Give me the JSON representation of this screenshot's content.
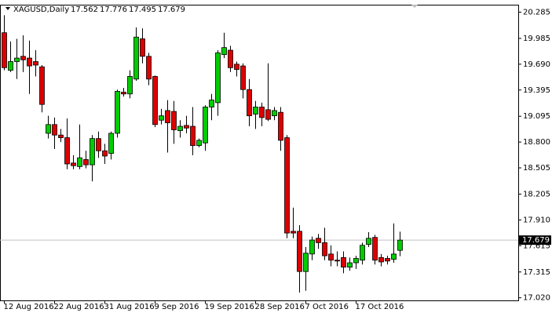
{
  "chart_data": {
    "type": "candlestick",
    "symbol": "XAGUSD,Daily",
    "categories": [
      "12 Aug 2016",
      null,
      null,
      null,
      null,
      null,
      null,
      null,
      "22 Aug 2016",
      null,
      null,
      null,
      null,
      null,
      null,
      null,
      "31 Aug 2016",
      null,
      null,
      null,
      null,
      null,
      null,
      null,
      "9 Sep 2016",
      null,
      null,
      null,
      null,
      null,
      null,
      null,
      "19 Sep 2016",
      null,
      null,
      null,
      null,
      null,
      null,
      null,
      "28 Sep 2016",
      null,
      null,
      null,
      null,
      null,
      null,
      null,
      "7 Oct 2016",
      null,
      null,
      null,
      null,
      null,
      null,
      null,
      "17 Oct 2016",
      null,
      null,
      null,
      null,
      null,
      null,
      null
    ],
    "open": [
      20.05,
      19.62,
      19.72,
      19.78,
      19.76,
      19.72,
      19.66,
      18.9,
      19.0,
      18.88,
      18.85,
      18.56,
      18.52,
      18.6,
      18.54,
      18.84,
      18.7,
      18.67,
      18.9,
      19.37,
      19.35,
      19.52,
      19.98,
      19.78,
      19.55,
      19.05,
      19.16,
      19.15,
      18.93,
      18.99,
      18.98,
      18.76,
      18.79,
      19.2,
      19.25,
      19.8,
      19.85,
      19.69,
      19.67,
      19.4,
      19.12,
      19.2,
      19.17,
      19.1,
      19.14,
      18.85,
      17.78,
      17.78,
      17.32,
      17.52,
      17.7,
      17.65,
      17.52,
      17.45,
      17.48,
      17.37,
      17.42,
      17.45,
      17.63,
      17.71,
      17.48,
      17.47,
      17.46,
      17.562
    ],
    "high": [
      20.25,
      19.95,
      19.98,
      20.02,
      19.96,
      19.85,
      19.68,
      19.1,
      19.08,
      18.95,
      19.07,
      18.65,
      19.0,
      18.7,
      18.88,
      18.92,
      18.78,
      18.92,
      19.4,
      19.42,
      19.62,
      20.11,
      20.1,
      19.82,
      19.56,
      19.18,
      19.28,
      19.27,
      19.05,
      19.1,
      19.2,
      18.84,
      19.22,
      19.35,
      19.85,
      20.05,
      19.9,
      19.72,
      19.7,
      19.52,
      19.27,
      19.25,
      19.7,
      19.2,
      19.2,
      18.88,
      18.05,
      17.85,
      17.6,
      17.72,
      17.75,
      17.82,
      17.62,
      17.55,
      17.55,
      17.48,
      17.5,
      17.65,
      17.77,
      17.74,
      17.52,
      17.5,
      17.87,
      17.776
    ],
    "low": [
      19.62,
      19.6,
      19.52,
      19.6,
      19.35,
      19.55,
      19.14,
      18.84,
      18.72,
      18.8,
      18.49,
      18.49,
      18.49,
      18.5,
      18.35,
      18.62,
      18.55,
      18.6,
      18.85,
      19.32,
      19.3,
      19.5,
      19.7,
      19.45,
      18.97,
      19.0,
      18.68,
      18.78,
      18.85,
      18.9,
      18.65,
      18.74,
      18.7,
      19.05,
      19.1,
      19.76,
      19.6,
      19.55,
      19.3,
      18.98,
      18.95,
      18.98,
      19.04,
      19.05,
      18.7,
      17.7,
      17.7,
      17.08,
      17.1,
      17.45,
      17.58,
      17.45,
      17.38,
      17.38,
      17.3,
      17.33,
      17.35,
      17.4,
      17.6,
      17.4,
      17.38,
      17.4,
      17.42,
      17.495
    ],
    "close": [
      19.65,
      19.72,
      19.76,
      19.74,
      19.67,
      19.68,
      19.23,
      19.0,
      18.88,
      18.85,
      18.55,
      18.53,
      18.62,
      18.54,
      18.84,
      18.7,
      18.64,
      18.9,
      19.38,
      19.35,
      19.55,
      20.0,
      19.78,
      19.52,
      19.0,
      19.1,
      19.02,
      18.94,
      18.98,
      18.96,
      18.76,
      18.82,
      19.2,
      19.28,
      19.82,
      19.88,
      19.65,
      19.63,
      19.4,
      19.1,
      19.2,
      19.08,
      19.06,
      19.16,
      18.82,
      17.76,
      17.76,
      17.32,
      17.53,
      17.68,
      17.65,
      17.5,
      17.45,
      17.44,
      17.37,
      17.42,
      17.47,
      17.62,
      17.7,
      17.45,
      17.43,
      17.44,
      17.52,
      17.679
    ],
    "up_color": "#00cc00",
    "down_color": "#dd0000",
    "ylim": [
      16.99,
      20.37
    ],
    "yticks": [
      {
        "value": 17.02,
        "label": "17.020"
      },
      17.315,
      17.615,
      {
        "value": 17.91,
        "label": "17.910"
      },
      18.205,
      18.505,
      {
        "value": 18.8,
        "label": "18.800"
      },
      19.095,
      19.395,
      {
        "value": 19.69,
        "label": "19.690"
      },
      19.985,
      20.285
    ],
    "grid": false
  }
}
